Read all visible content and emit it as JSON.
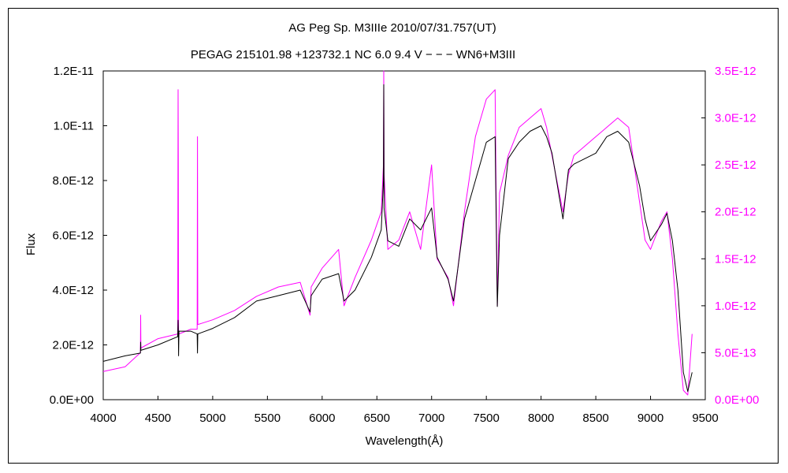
{
  "chart_data": {
    "type": "line",
    "title": "AG Peg    Sp. M3IIIe    2010/07/31.757(UT)",
    "subtitle": "PEGAG 215101.98 +123732.1  NC 6.0 9.4 V − − − WN6+M3III",
    "xlabel": "Wavelength(Å)",
    "ylabel": "Flux",
    "xlim": [
      4000,
      9500
    ],
    "ylim_left": [
      0,
      1.2e-11
    ],
    "ylim_right": [
      0,
      3.5e-12
    ],
    "x_ticks": [
      "4000",
      "4500",
      "5000",
      "5500",
      "6000",
      "6500",
      "7000",
      "7500",
      "8000",
      "8500",
      "9000",
      "9500"
    ],
    "y_ticks_left": [
      "0.0E+00",
      "2.0E-12",
      "4.0E-12",
      "6.0E-12",
      "8.0E-12",
      "1.0E-11",
      "1.2E-11"
    ],
    "y_ticks_right": [
      "0.0E+00",
      "5.0E-13",
      "1.0E-12",
      "1.5E-12",
      "2.0E-12",
      "2.5E-12",
      "3.0E-12",
      "3.5E-12"
    ],
    "grid": false,
    "legend": "none",
    "series": [
      {
        "axis": "left",
        "color": "#000000",
        "x": [
          4000,
          4200,
          4340,
          4342,
          4344,
          4500,
          4680,
          4684,
          4686,
          4688,
          4692,
          4800,
          4858,
          4861,
          4864,
          5000,
          5200,
          5400,
          5600,
          5800,
          5890,
          5900,
          6000,
          6150,
          6200,
          6300,
          6450,
          6540,
          6560,
          6563,
          6566,
          6600,
          6700,
          6800,
          6900,
          7000,
          7050,
          7150,
          7200,
          7300,
          7400,
          7500,
          7580,
          7600,
          7620,
          7700,
          7800,
          7900,
          8000,
          8050,
          8100,
          8200,
          8250,
          8300,
          8500,
          8600,
          8700,
          8800,
          8900,
          8950,
          9000,
          9100,
          9150,
          9200,
          9250,
          9300,
          9340,
          9380
        ],
        "y": [
          1.4e-12,
          1.6e-12,
          1.7e-12,
          2.1e-12,
          1.8e-12,
          2e-12,
          2.3e-12,
          2.9e-12,
          2.6e-12,
          1.6e-12,
          2.5e-12,
          2.5e-12,
          2.4e-12,
          1.7e-12,
          2.4e-12,
          2.6e-12,
          3e-12,
          3.6e-12,
          3.8e-12,
          4e-12,
          3.2e-12,
          3.8e-12,
          4.4e-12,
          4.6e-12,
          3.6e-12,
          4e-12,
          5.2e-12,
          6.2e-12,
          8e-12,
          1.15e-11,
          7e-12,
          5.8e-12,
          5.6e-12,
          6.6e-12,
          6.2e-12,
          7e-12,
          5.2e-12,
          4.4e-12,
          3.6e-12,
          6.6e-12,
          8e-12,
          9.4e-12,
          9.6e-12,
          3.4e-12,
          6e-12,
          8.8e-12,
          9.4e-12,
          9.8e-12,
          1e-11,
          9.6e-12,
          9e-12,
          6.6e-12,
          8.4e-12,
          8.6e-12,
          9e-12,
          9.6e-12,
          9.8e-12,
          9.4e-12,
          7.8e-12,
          6.6e-12,
          5.8e-12,
          6.4e-12,
          6.8e-12,
          5.8e-12,
          4e-12,
          1e-12,
          3e-13,
          1e-12
        ]
      },
      {
        "axis": "right",
        "color": "#ff00ff",
        "x": [
          4000,
          4200,
          4340,
          4342,
          4344,
          4500,
          4680,
          4684,
          4686,
          4688,
          4692,
          4800,
          4858,
          4861,
          4864,
          5000,
          5200,
          5400,
          5600,
          5800,
          5890,
          5900,
          6000,
          6150,
          6200,
          6300,
          6450,
          6540,
          6560,
          6563,
          6566,
          6600,
          6700,
          6800,
          6900,
          7000,
          7050,
          7150,
          7200,
          7300,
          7400,
          7500,
          7580,
          7600,
          7620,
          7700,
          7800,
          7900,
          8000,
          8050,
          8100,
          8200,
          8250,
          8300,
          8500,
          8600,
          8700,
          8800,
          8900,
          8950,
          9000,
          9100,
          9150,
          9200,
          9250,
          9300,
          9340,
          9380
        ],
        "y": [
          3e-13,
          3.5e-13,
          5e-13,
          9e-13,
          5.5e-13,
          6.5e-13,
          7e-13,
          3.3e-12,
          2.5e-12,
          7.5e-13,
          7e-13,
          7.5e-13,
          7.5e-13,
          2.8e-12,
          8e-13,
          8.5e-13,
          9.5e-13,
          1.1e-12,
          1.2e-12,
          1.25e-12,
          9e-13,
          1.2e-12,
          1.4e-12,
          1.6e-12,
          1e-12,
          1.3e-12,
          1.7e-12,
          2e-12,
          2.5e-12,
          3.5e-12,
          2.4e-12,
          1.6e-12,
          1.7e-12,
          2e-12,
          1.6e-12,
          2.5e-12,
          1.5e-12,
          1.3e-12,
          1e-12,
          2e-12,
          2.8e-12,
          3.2e-12,
          3.3e-12,
          1e-12,
          2.2e-12,
          2.6e-12,
          2.9e-12,
          3e-12,
          3.1e-12,
          2.9e-12,
          2.6e-12,
          2e-12,
          2.4e-12,
          2.6e-12,
          2.8e-12,
          2.9e-12,
          3e-12,
          2.9e-12,
          2.1e-12,
          1.7e-12,
          1.6e-12,
          1.9e-12,
          2e-12,
          1.5e-12,
          7e-13,
          1e-13,
          5e-14,
          7e-13
        ]
      }
    ]
  }
}
